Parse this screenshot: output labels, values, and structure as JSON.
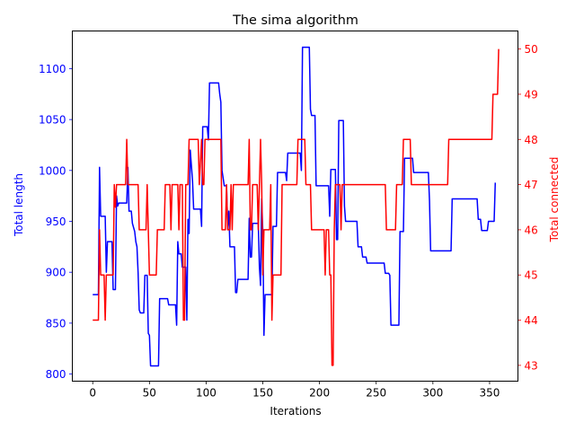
{
  "chart_data": {
    "type": "line",
    "title": "The sima algorithm",
    "xlabel": "Iterations",
    "ylabel_left": "Total length",
    "ylabel_right": "Total connected",
    "xlim": [
      -18,
      375
    ],
    "ylim_left": [
      793,
      1137
    ],
    "ylim_right": [
      42.65,
      50.4
    ],
    "x_ticks": [
      0,
      50,
      100,
      150,
      200,
      250,
      300,
      350
    ],
    "y_left_ticks": [
      800,
      850,
      900,
      950,
      1000,
      1050,
      1100
    ],
    "y_right_ticks": [
      43,
      44,
      45,
      46,
      47,
      48,
      49,
      50
    ],
    "grid": false,
    "series": [
      {
        "name": "",
        "axis": "left",
        "color": "#0000ff",
        "points": [
          [
            0,
            878
          ],
          [
            5,
            878
          ],
          [
            6,
            1003
          ],
          [
            7,
            955
          ],
          [
            11,
            955
          ],
          [
            12,
            900
          ],
          [
            13,
            930
          ],
          [
            17,
            930
          ],
          [
            18,
            883
          ],
          [
            20,
            883
          ],
          [
            21,
            975
          ],
          [
            22,
            965
          ],
          [
            23,
            968
          ],
          [
            30,
            968
          ],
          [
            31,
            1003
          ],
          [
            32,
            960
          ],
          [
            34,
            960
          ],
          [
            35,
            948
          ],
          [
            37,
            940
          ],
          [
            38,
            930
          ],
          [
            39,
            925
          ],
          [
            40,
            900
          ],
          [
            41,
            863
          ],
          [
            42,
            860
          ],
          [
            45,
            860
          ],
          [
            46,
            897
          ],
          [
            48,
            897
          ],
          [
            49,
            840
          ],
          [
            50,
            838
          ],
          [
            51,
            808
          ],
          [
            58,
            808
          ],
          [
            59,
            874
          ],
          [
            66,
            874
          ],
          [
            67,
            868
          ],
          [
            73,
            868
          ],
          [
            74,
            848
          ],
          [
            75,
            930
          ],
          [
            76,
            918
          ],
          [
            78,
            918
          ],
          [
            79,
            905
          ],
          [
            82,
            905
          ],
          [
            83,
            853
          ],
          [
            84,
            952
          ],
          [
            85,
            938
          ],
          [
            86,
            1020
          ],
          [
            88,
            990
          ],
          [
            89,
            962
          ],
          [
            95,
            962
          ],
          [
            96,
            945
          ],
          [
            97,
            1043
          ],
          [
            101,
            1043
          ],
          [
            102,
            1030
          ],
          [
            103,
            1086
          ],
          [
            111,
            1086
          ],
          [
            112,
            1075
          ],
          [
            113,
            1067
          ],
          [
            114,
            1000
          ],
          [
            116,
            985
          ],
          [
            118,
            985
          ],
          [
            119,
            945
          ],
          [
            120,
            960
          ],
          [
            121,
            925
          ],
          [
            125,
            925
          ],
          [
            126,
            880
          ],
          [
            127,
            880
          ],
          [
            128,
            893
          ],
          [
            137,
            893
          ],
          [
            138,
            953
          ],
          [
            139,
            915
          ],
          [
            140,
            915
          ],
          [
            141,
            948
          ],
          [
            146,
            948
          ],
          [
            147,
            905
          ],
          [
            148,
            887
          ],
          [
            149,
            972
          ],
          [
            150,
            940
          ],
          [
            151,
            838
          ],
          [
            152,
            878
          ],
          [
            158,
            878
          ],
          [
            159,
            945
          ],
          [
            162,
            945
          ],
          [
            163,
            998
          ],
          [
            170,
            998
          ],
          [
            171,
            990
          ],
          [
            172,
            1017
          ],
          [
            183,
            1017
          ],
          [
            184,
            1000
          ],
          [
            185,
            1121
          ],
          [
            191,
            1121
          ],
          [
            192,
            1060
          ],
          [
            193,
            1054
          ],
          [
            196,
            1054
          ],
          [
            197,
            985
          ],
          [
            208,
            985
          ],
          [
            209,
            955
          ],
          [
            210,
            1001
          ],
          [
            214,
            1001
          ],
          [
            215,
            932
          ],
          [
            216,
            932
          ],
          [
            217,
            1049
          ],
          [
            221,
            1049
          ],
          [
            222,
            965
          ],
          [
            223,
            950
          ],
          [
            233,
            950
          ],
          [
            234,
            925
          ],
          [
            237,
            925
          ],
          [
            238,
            915
          ],
          [
            241,
            915
          ],
          [
            242,
            909
          ],
          [
            257,
            909
          ],
          [
            258,
            899
          ],
          [
            261,
            899
          ],
          [
            262,
            897
          ],
          [
            263,
            848
          ],
          [
            270,
            848
          ],
          [
            271,
            940
          ],
          [
            274,
            940
          ],
          [
            275,
            1012
          ],
          [
            282,
            1012
          ],
          [
            283,
            998
          ],
          [
            296,
            998
          ],
          [
            297,
            970
          ],
          [
            298,
            921
          ],
          [
            316,
            921
          ],
          [
            317,
            972
          ],
          [
            339,
            972
          ],
          [
            340,
            952
          ],
          [
            342,
            952
          ],
          [
            343,
            941
          ],
          [
            348,
            941
          ],
          [
            349,
            950
          ],
          [
            354,
            950
          ],
          [
            355,
            988
          ]
        ]
      },
      {
        "name": "",
        "axis": "right",
        "color": "#ff0000",
        "points": [
          [
            0,
            44
          ],
          [
            5,
            44
          ],
          [
            6,
            46
          ],
          [
            7,
            45
          ],
          [
            10,
            45
          ],
          [
            11,
            44
          ],
          [
            12,
            45
          ],
          [
            18,
            45
          ],
          [
            19,
            47
          ],
          [
            20,
            46.5
          ],
          [
            21,
            47
          ],
          [
            29,
            47
          ],
          [
            30,
            48
          ],
          [
            31,
            47
          ],
          [
            40,
            47
          ],
          [
            41,
            46
          ],
          [
            47,
            46
          ],
          [
            48,
            47
          ],
          [
            49,
            46
          ],
          [
            50,
            45
          ],
          [
            56,
            45
          ],
          [
            57,
            46
          ],
          [
            63,
            46
          ],
          [
            64,
            47
          ],
          [
            68,
            47
          ],
          [
            69,
            46
          ],
          [
            70,
            47
          ],
          [
            75,
            47
          ],
          [
            76,
            46
          ],
          [
            77,
            47
          ],
          [
            79,
            47
          ],
          [
            80,
            44
          ],
          [
            81,
            44
          ],
          [
            82,
            47
          ],
          [
            84,
            47
          ],
          [
            85,
            48
          ],
          [
            93,
            48
          ],
          [
            94,
            47
          ],
          [
            96,
            48
          ],
          [
            97,
            47
          ],
          [
            98,
            47
          ],
          [
            99,
            48
          ],
          [
            113,
            48
          ],
          [
            114,
            46
          ],
          [
            117,
            46
          ],
          [
            118,
            47
          ],
          [
            119,
            46
          ],
          [
            121,
            46
          ],
          [
            122,
            47
          ],
          [
            123,
            46
          ],
          [
            124,
            47
          ],
          [
            137,
            47
          ],
          [
            138,
            48
          ],
          [
            139,
            46
          ],
          [
            140,
            46
          ],
          [
            141,
            47
          ],
          [
            145,
            47
          ],
          [
            146,
            46
          ],
          [
            148,
            48
          ],
          [
            149,
            47
          ],
          [
            150,
            45
          ],
          [
            151,
            46
          ],
          [
            156,
            46
          ],
          [
            157,
            47
          ],
          [
            158,
            44
          ],
          [
            159,
            45
          ],
          [
            166,
            45
          ],
          [
            167,
            47
          ],
          [
            180,
            47
          ],
          [
            181,
            48
          ],
          [
            187,
            48
          ],
          [
            188,
            47
          ],
          [
            192,
            47
          ],
          [
            193,
            46
          ],
          [
            204,
            46
          ],
          [
            205,
            45
          ],
          [
            206,
            46
          ],
          [
            208,
            46
          ],
          [
            209,
            45
          ],
          [
            210,
            45
          ],
          [
            211,
            43
          ],
          [
            212,
            43
          ],
          [
            213,
            46
          ],
          [
            214,
            47
          ],
          [
            218,
            47
          ],
          [
            219,
            46
          ],
          [
            220,
            47
          ],
          [
            258,
            47
          ],
          [
            259,
            46
          ],
          [
            267,
            46
          ],
          [
            268,
            47
          ],
          [
            273,
            47
          ],
          [
            274,
            48
          ],
          [
            280,
            48
          ],
          [
            281,
            47
          ],
          [
            313,
            47
          ],
          [
            314,
            48
          ],
          [
            352,
            48
          ],
          [
            353,
            49
          ],
          [
            357,
            49
          ],
          [
            358,
            50
          ]
        ]
      }
    ]
  }
}
